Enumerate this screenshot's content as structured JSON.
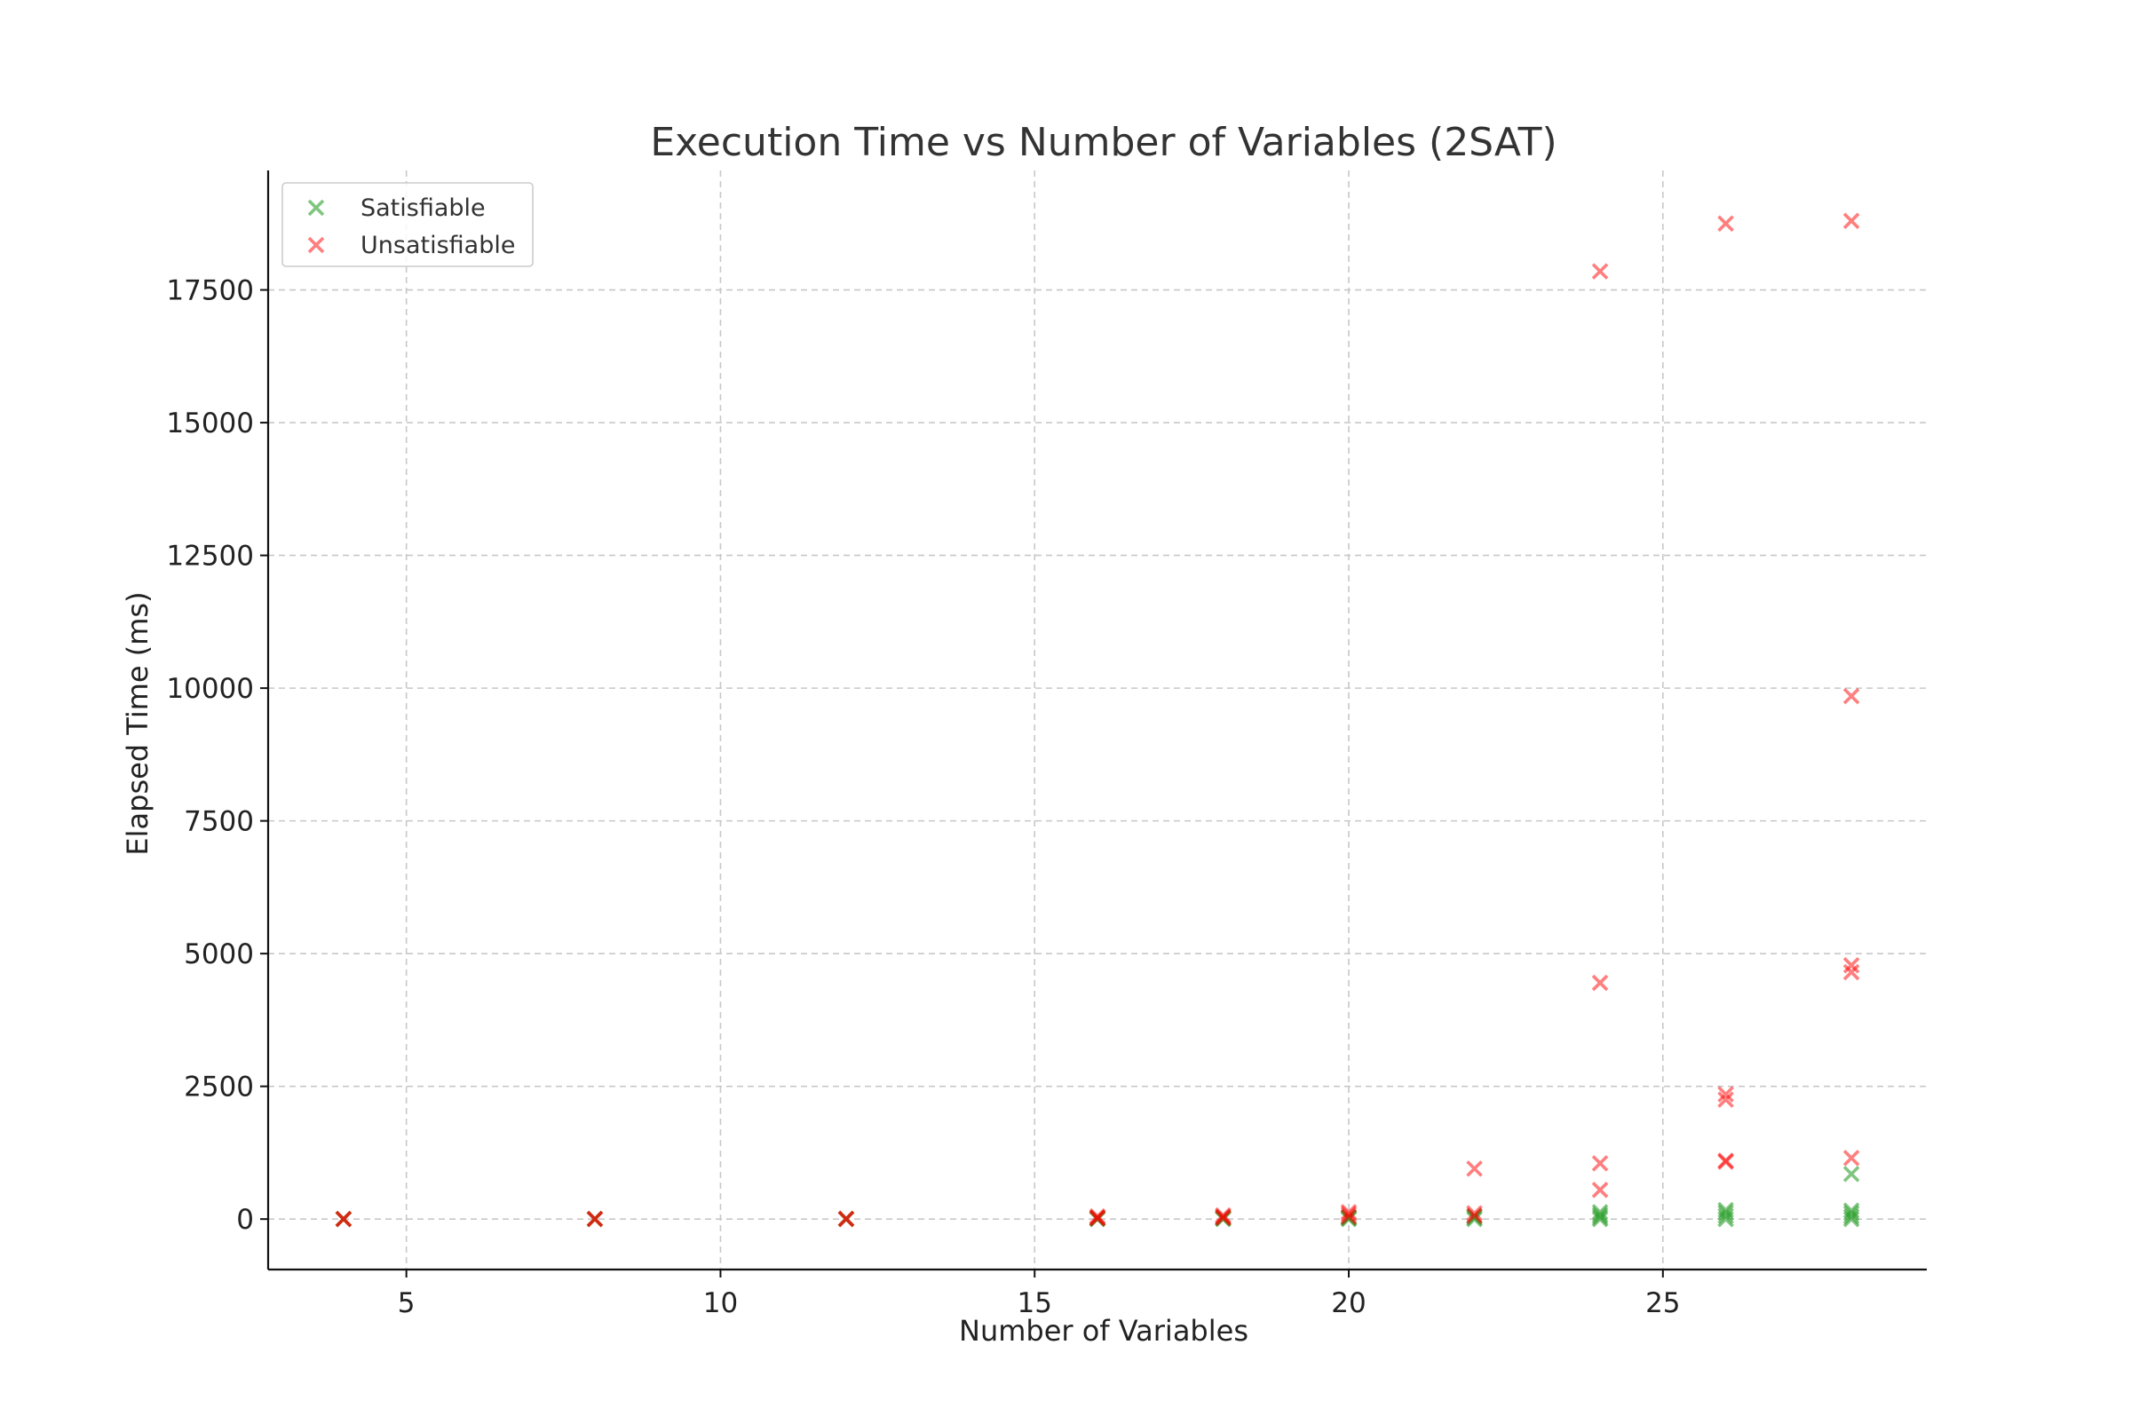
{
  "chart_data": {
    "type": "scatter",
    "title": "Execution Time vs Number of Variables (2SAT)",
    "xlabel": "Number of Variables",
    "ylabel": "Elapsed Time (ms)",
    "xlim": [
      2.8,
      29.2
    ],
    "ylim": [
      -950,
      19750
    ],
    "xticks": [
      5,
      10,
      15,
      20,
      25
    ],
    "xtick_labels": [
      "5",
      "10",
      "15",
      "20",
      "25"
    ],
    "yticks": [
      0,
      2500,
      5000,
      7500,
      10000,
      12500,
      15000,
      17500
    ],
    "ytick_labels": [
      "0",
      "2500",
      "5000",
      "7500",
      "10000",
      "12500",
      "15000",
      "17500"
    ],
    "grid": true,
    "legend_position": "top-left",
    "marker": "x",
    "series": [
      {
        "name": "Satisfiable",
        "color": "#2ca02c",
        "opacity": 0.6,
        "points": [
          {
            "x": 4,
            "y": 0
          },
          {
            "x": 4,
            "y": 2
          },
          {
            "x": 8,
            "y": 0
          },
          {
            "x": 8,
            "y": 3
          },
          {
            "x": 12,
            "y": 0
          },
          {
            "x": 12,
            "y": 5
          },
          {
            "x": 16,
            "y": 0
          },
          {
            "x": 16,
            "y": 10
          },
          {
            "x": 16,
            "y": 20
          },
          {
            "x": 18,
            "y": 0
          },
          {
            "x": 18,
            "y": 15
          },
          {
            "x": 18,
            "y": 30
          },
          {
            "x": 20,
            "y": 0
          },
          {
            "x": 20,
            "y": 20
          },
          {
            "x": 20,
            "y": 40
          },
          {
            "x": 22,
            "y": 0
          },
          {
            "x": 22,
            "y": 30
          },
          {
            "x": 22,
            "y": 60
          },
          {
            "x": 24,
            "y": 0
          },
          {
            "x": 24,
            "y": 40
          },
          {
            "x": 24,
            "y": 80
          },
          {
            "x": 24,
            "y": 130
          },
          {
            "x": 26,
            "y": 0
          },
          {
            "x": 26,
            "y": 60
          },
          {
            "x": 26,
            "y": 120
          },
          {
            "x": 26,
            "y": 170
          },
          {
            "x": 28,
            "y": 0
          },
          {
            "x": 28,
            "y": 50
          },
          {
            "x": 28,
            "y": 110
          },
          {
            "x": 28,
            "y": 160
          },
          {
            "x": 28,
            "y": 850
          }
        ]
      },
      {
        "name": "Unsatisfiable",
        "color": "#ff0000",
        "opacity": 0.5,
        "points": [
          {
            "x": 4,
            "y": 0
          },
          {
            "x": 4,
            "y": 3
          },
          {
            "x": 8,
            "y": 0
          },
          {
            "x": 8,
            "y": 5
          },
          {
            "x": 12,
            "y": 0
          },
          {
            "x": 12,
            "y": 8
          },
          {
            "x": 16,
            "y": 10
          },
          {
            "x": 16,
            "y": 30
          },
          {
            "x": 16,
            "y": 50
          },
          {
            "x": 18,
            "y": 20
          },
          {
            "x": 18,
            "y": 45
          },
          {
            "x": 18,
            "y": 70
          },
          {
            "x": 20,
            "y": 40
          },
          {
            "x": 20,
            "y": 90
          },
          {
            "x": 20,
            "y": 130
          },
          {
            "x": 22,
            "y": 60
          },
          {
            "x": 22,
            "y": 110
          },
          {
            "x": 22,
            "y": 950
          },
          {
            "x": 24,
            "y": 550
          },
          {
            "x": 24,
            "y": 1050
          },
          {
            "x": 24,
            "y": 4450
          },
          {
            "x": 24,
            "y": 17850
          },
          {
            "x": 26,
            "y": 1080
          },
          {
            "x": 26,
            "y": 1100
          },
          {
            "x": 26,
            "y": 2250
          },
          {
            "x": 26,
            "y": 2350
          },
          {
            "x": 26,
            "y": 18750
          },
          {
            "x": 28,
            "y": 1150
          },
          {
            "x": 28,
            "y": 4650
          },
          {
            "x": 28,
            "y": 4780
          },
          {
            "x": 28,
            "y": 9850
          },
          {
            "x": 28,
            "y": 18800
          }
        ]
      }
    ]
  }
}
